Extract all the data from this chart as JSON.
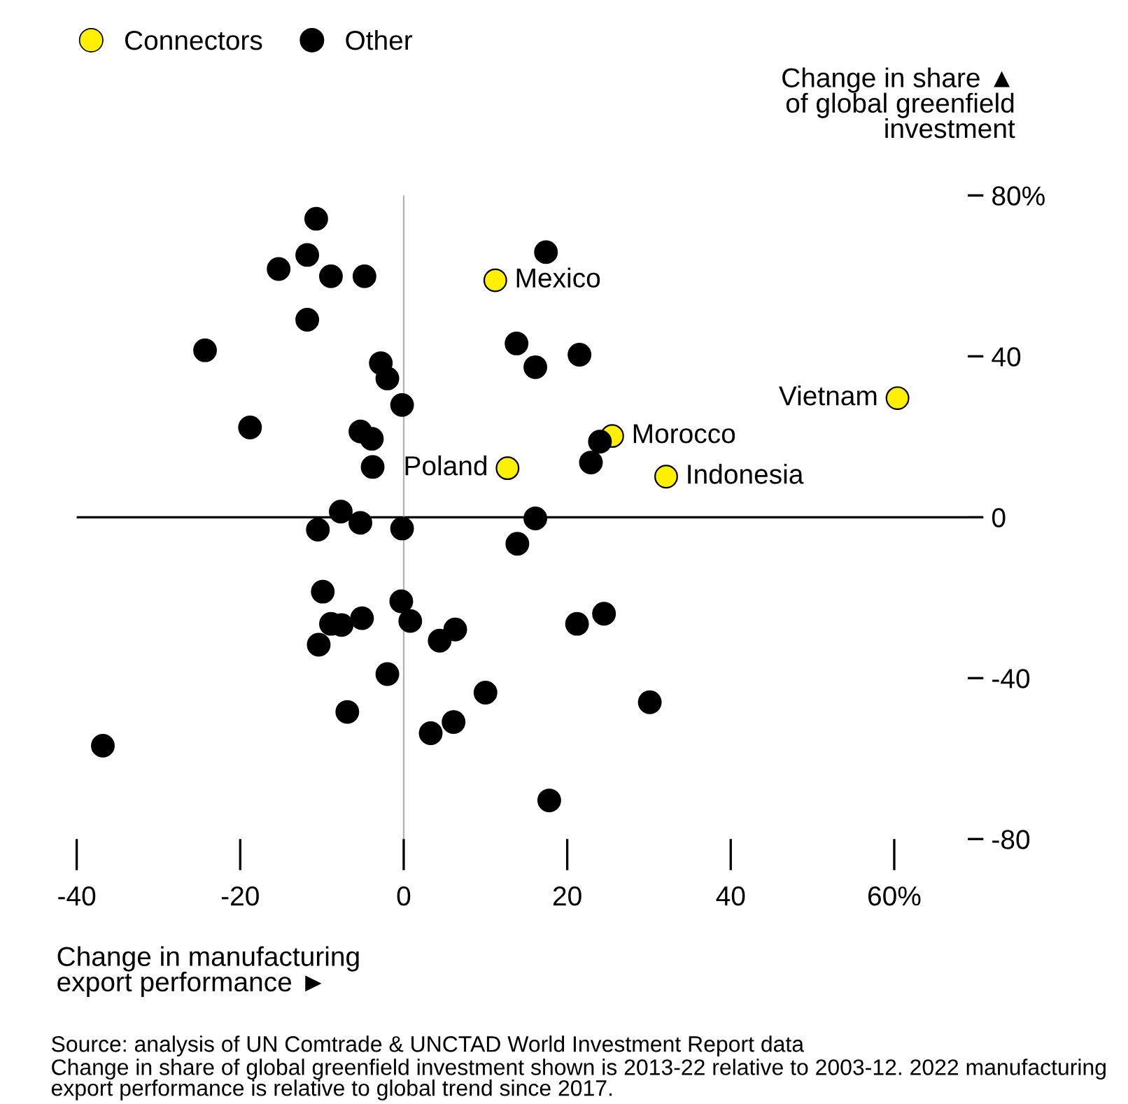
{
  "chart_data": {
    "type": "scatter",
    "xlabel": "Change in manufacturing export performance ►",
    "ylabel": "Change in share ▲ of global greenfield investment",
    "xlim": [
      -40,
      69
    ],
    "ylim": [
      -80,
      80
    ],
    "xticks": [
      -40,
      -20,
      0,
      20,
      40,
      {
        "value": 60,
        "label": "60%"
      }
    ],
    "yticks": [
      -80,
      -40,
      0,
      40,
      {
        "value": 80,
        "label": "80%"
      }
    ],
    "ref_lines": [
      {
        "axis": "y",
        "value": 0,
        "color": "#000000"
      },
      {
        "axis": "x",
        "value": 0,
        "color": "#b0b0b0"
      }
    ],
    "legend": "top left",
    "marker": "circle",
    "grid": false,
    "series": [
      {
        "name": "Connectors",
        "color": "#fff000",
        "x": [
          11.2,
          60.4,
          25.5,
          12.7,
          32.1
        ],
        "values": [
          58.9,
          29.6,
          20.2,
          12.2,
          10.1
        ]
      },
      {
        "name": "Other",
        "color": "#000000",
        "x": [
          -10.7,
          -11.8,
          -15.3,
          -8.9,
          -4.8,
          17.4,
          -11.8,
          -24.3,
          13.8,
          21.5,
          16.1,
          -2.8,
          -2.0,
          -0.2,
          -18.8,
          -5.3,
          -3.9,
          24.0,
          22.9,
          -3.8,
          -7.7,
          16.1,
          -10.5,
          -5.3,
          -0.2,
          13.9,
          -9.9,
          -8.9,
          -7.6,
          -5.1,
          -10.4,
          -0.3,
          0.8,
          6.3,
          4.4,
          21.2,
          24.5,
          -2.0,
          10.0,
          30.1,
          -6.9,
          6.1,
          3.3,
          -36.8,
          17.8
        ],
        "values": [
          74.2,
          65.2,
          61.7,
          59.9,
          59.9,
          65.9,
          49.1,
          41.5,
          43.2,
          40.4,
          37.3,
          38.3,
          34.5,
          27.9,
          22.3,
          21.3,
          19.5,
          18.8,
          13.6,
          12.5,
          1.4,
          -0.3,
          -3.1,
          -1.4,
          -2.8,
          -6.6,
          -18.5,
          -26.5,
          -26.8,
          -25.1,
          -31.7,
          -20.9,
          -25.8,
          -27.9,
          -30.7,
          -26.5,
          -24.0,
          -39.0,
          -43.6,
          -46.0,
          -48.4,
          -50.9,
          -53.7,
          -56.8,
          -70.4
        ]
      }
    ],
    "annotations": [
      {
        "text": "Mexico",
        "x": 11.2,
        "y": 58.9
      },
      {
        "text": "Vietnam",
        "x": 60.4,
        "y": 29.6
      },
      {
        "text": "Morocco",
        "x": 25.5,
        "y": 20.2
      },
      {
        "text": "Poland",
        "x": 12.7,
        "y": 12.2
      },
      {
        "text": "Indonesia",
        "x": 32.1,
        "y": 10.1
      },
      "Source: analysis of UN Comtrade & UNCTAD World Investment Report data",
      "Change in share of global greenfield investment shown is 2013-22 relative to 2003-12. 2022 manufacturing export performance is relative to global trend since 2017."
    ]
  }
}
